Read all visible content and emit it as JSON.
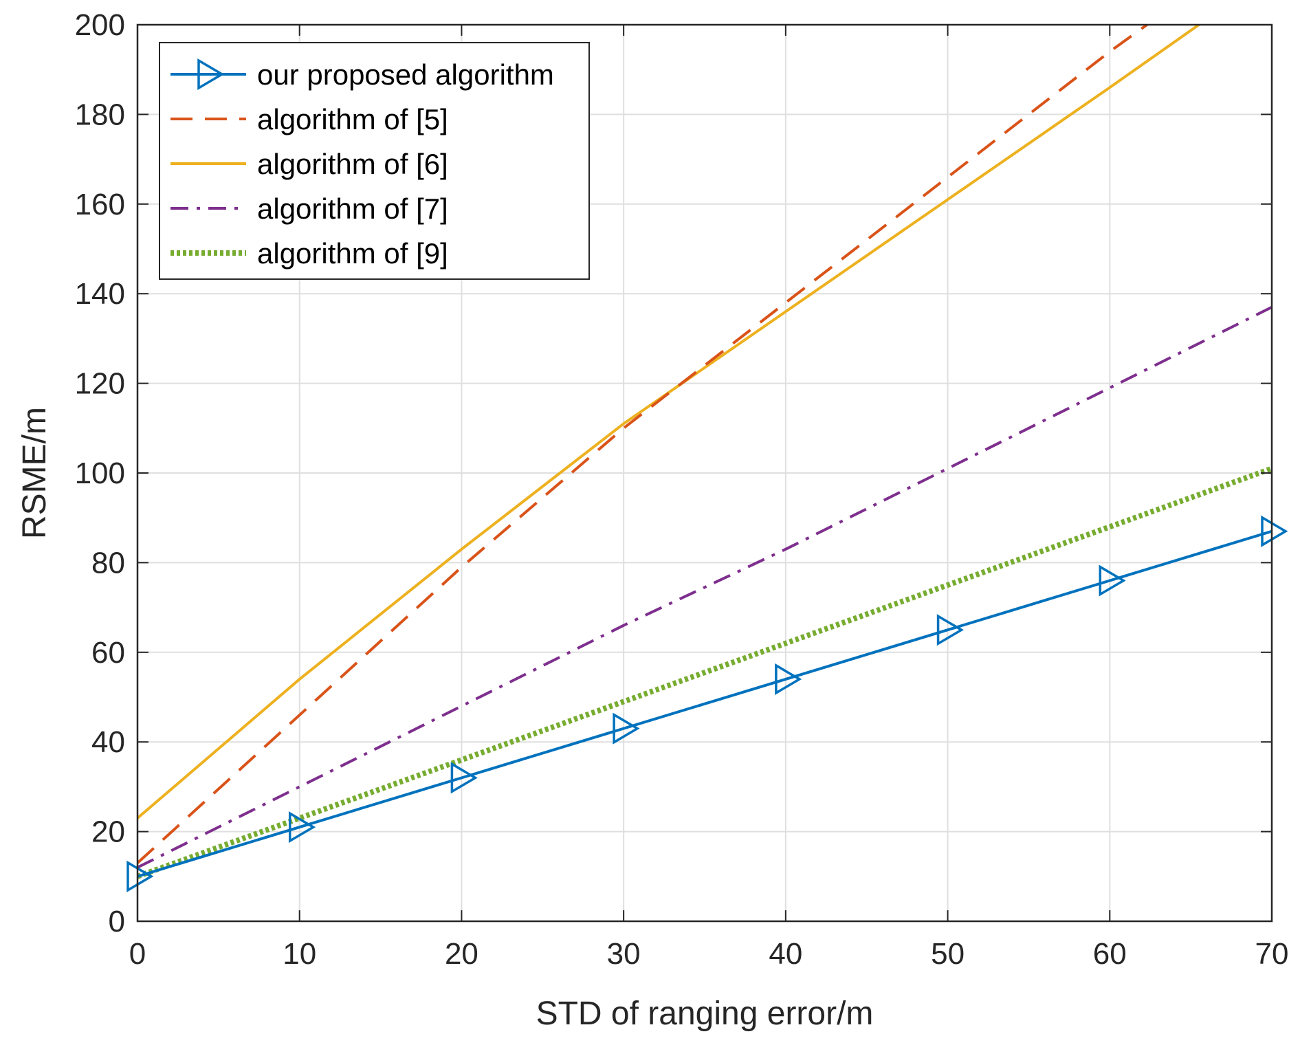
{
  "chart_data": {
    "type": "line",
    "title": "",
    "xlabel": "STD of ranging error/m",
    "ylabel": "RSME/m",
    "xlim": [
      0,
      70
    ],
    "ylim": [
      0,
      200
    ],
    "xticks": [
      0,
      10,
      20,
      30,
      40,
      50,
      60,
      70
    ],
    "yticks": [
      0,
      20,
      40,
      60,
      80,
      100,
      120,
      140,
      160,
      180,
      200
    ],
    "grid": true,
    "legend_position": "top-left",
    "series": [
      {
        "name": "our proposed algorithm",
        "color": "#0072BD",
        "style": "solid",
        "marker": "triangle-right",
        "x": [
          0,
          10,
          20,
          30,
          40,
          50,
          60,
          70
        ],
        "y": [
          10,
          21,
          32,
          43,
          54,
          65,
          76,
          87
        ]
      },
      {
        "name": "algorithm of [5]",
        "color": "#D95319",
        "style": "dashed",
        "x": [
          0,
          10,
          20,
          30,
          40,
          50,
          60,
          62.3
        ],
        "y": [
          13,
          46,
          79,
          110,
          138,
          166,
          194,
          200
        ]
      },
      {
        "name": "algorithm of [6]",
        "color": "#EDB120",
        "style": "solid",
        "x": [
          0,
          10,
          20,
          30,
          40,
          50,
          60,
          65.5
        ],
        "y": [
          23,
          54,
          83,
          111,
          136,
          161,
          186,
          200
        ]
      },
      {
        "name": "algorithm of [7]",
        "color": "#7E2F8E",
        "style": "dashdot",
        "x": [
          0,
          10,
          20,
          30,
          40,
          50,
          60,
          70
        ],
        "y": [
          12,
          30,
          48,
          66,
          83,
          101,
          119,
          137
        ]
      },
      {
        "name": "algorithm of [9]",
        "color": "#77AC30",
        "style": "dotted",
        "x": [
          0,
          10,
          20,
          30,
          40,
          50,
          60,
          70
        ],
        "y": [
          10,
          23,
          36,
          49,
          62,
          75,
          88,
          101
        ]
      }
    ]
  }
}
